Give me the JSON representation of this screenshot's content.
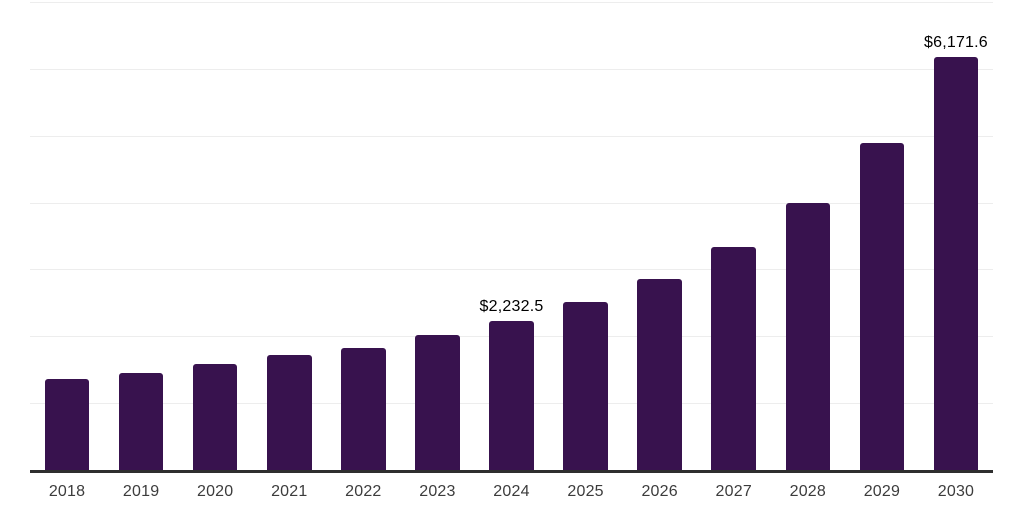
{
  "chart_data": {
    "type": "bar",
    "title": "",
    "xlabel": "",
    "ylabel": "",
    "categories": [
      "2018",
      "2019",
      "2020",
      "2021",
      "2022",
      "2023",
      "2024",
      "2025",
      "2026",
      "2027",
      "2028",
      "2029",
      "2030"
    ],
    "values": [
      1360,
      1450,
      1585,
      1720,
      1825,
      2020,
      2232.5,
      2510,
      2855,
      3335,
      3990,
      4890,
      6171.6
    ],
    "value_labels": {
      "2024": "$2,232.5",
      "2030": "$6,171.6"
    },
    "ylim": [
      0,
      7000
    ],
    "grid_step": 1000,
    "grid": true,
    "legend": false,
    "y_axis_labels_visible": false,
    "colors": {
      "bar": "#38124e",
      "gridline": "#ededed",
      "axis_line": "#2f2f2f",
      "tick_label": "#3c3c3c",
      "value_label": "#000000",
      "background": "#ffffff"
    }
  }
}
